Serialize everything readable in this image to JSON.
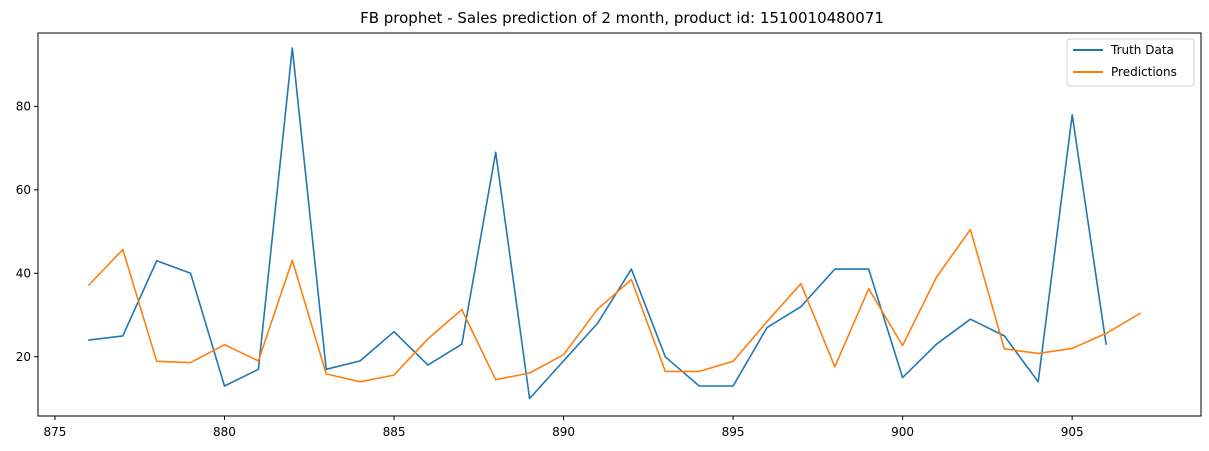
{
  "chart_data": {
    "type": "line",
    "title": "FB prophet - Sales prediction of 2 month, product id: 1510010480071",
    "xlabel": "",
    "ylabel": "",
    "xlim": [
      874.5,
      908.8
    ],
    "ylim": [
      5.8,
      97.6
    ],
    "xticks": [
      875,
      880,
      885,
      890,
      895,
      900,
      905
    ],
    "yticks": [
      20,
      40,
      60,
      80
    ],
    "grid": false,
    "legend_position": "top-right",
    "series": [
      {
        "name": "Truth Data",
        "color": "#1f77b4",
        "x": [
          876,
          877,
          878,
          879,
          880,
          881,
          882,
          883,
          884,
          885,
          886,
          887,
          888,
          889,
          890,
          891,
          892,
          893,
          894,
          895,
          896,
          897,
          898,
          899,
          900,
          901,
          902,
          903,
          904,
          905,
          906
        ],
        "values": [
          24,
          25,
          43,
          40,
          13,
          17,
          94,
          17,
          19,
          26,
          18,
          23,
          69,
          10,
          19,
          28,
          41,
          20,
          13,
          13,
          27,
          32,
          41,
          41,
          15,
          23,
          29,
          25,
          14,
          78,
          23
        ]
      },
      {
        "name": "Predictions",
        "color": "#ff7f0e",
        "x": [
          876,
          877,
          878,
          879,
          880,
          881,
          882,
          883,
          884,
          885,
          886,
          887,
          888,
          889,
          890,
          891,
          892,
          893,
          894,
          895,
          896,
          897,
          898,
          899,
          900,
          901,
          902,
          903,
          904,
          905,
          906,
          907
        ],
        "values": [
          37.2,
          45.7,
          18.9,
          18.6,
          22.9,
          19,
          43.1,
          15.9,
          14,
          15.6,
          24.3,
          31.3,
          14.5,
          16.1,
          20.5,
          31.4,
          38.5,
          16.5,
          16.5,
          18.9,
          28.4,
          37.5,
          17.6,
          36.3,
          22.7,
          39.1,
          50.5,
          21.9,
          20.8,
          22,
          25.6,
          30.4
        ]
      }
    ]
  }
}
